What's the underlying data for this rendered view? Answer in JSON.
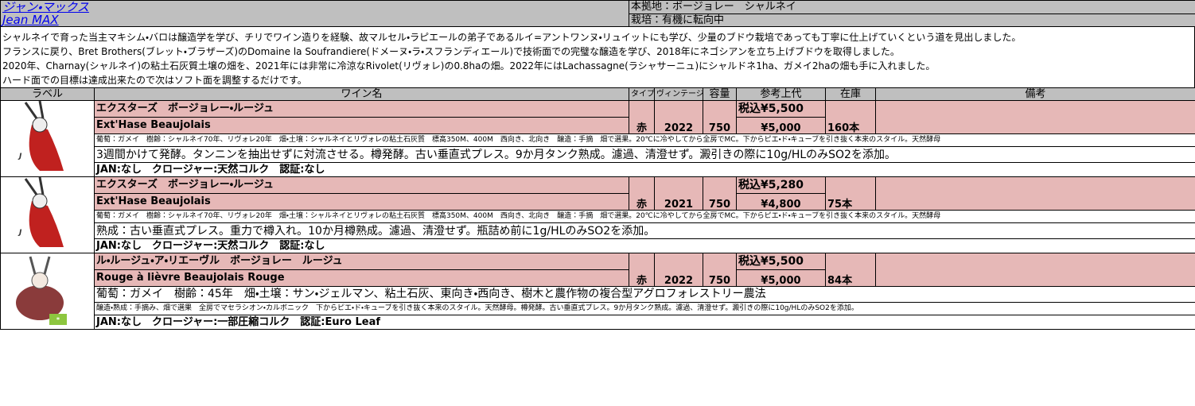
{
  "header": {
    "name_ja": "ジャン・マックス",
    "name_en": "Jean MAX",
    "base": "本拠地：ボージョレー　シャルネイ",
    "cultivation": "栽培：有機に転向中"
  },
  "description": [
    "シャルネイで育った当主マキシム・バロは醸造学を学び、チリでワイン造りを経験、故マルセル・ラピエールの弟子であるルイ=アントワンヌ・リュイットにも学び、少量のブドウ栽培であっても丁寧に仕上げていくという道を見出しました。",
    "フランスに戻り、Bret Brothers(ブレット・ブラザーズ)のDomaine la Soufrandiere(ドメーヌ・ラ・スフランディエール)で技術面での完璧な醸造を学び、2018年にネゴシアンを立ち上げブドウを取得しました。",
    "2020年、Charnay(シャルネイ)の粘土石灰質土壌の畑を、2021年には非常に冷涼なRivolet(リヴォレ)の0.8haの畑。2022年にはLachassagne(ラシャサーニュ)にシャルドネ1ha、ガメイ2haの畑も手に入れました。",
    "ハード面での目標は達成出来たので次はソフト面を調整するだけです。"
  ],
  "table": {
    "columns": [
      "ラベル",
      "ワイン名",
      "タイプ",
      "ヴィンテージ",
      "容量",
      "参考上代",
      "在庫",
      "備考"
    ],
    "rows": [
      {
        "name_ja": "エクスターズ　ボージョレー・ルージュ",
        "name_en": "Ext'Hase Beaujolais",
        "type": "赤",
        "vintage": 2022,
        "volume": 750,
        "price_incl": "税込¥5,500",
        "price": "¥5,000",
        "stock": "160本",
        "details": [
          "葡萄：ガメイ　樹齢：シャルネイ70年、リヴォレ20年　畑・土壌：シャルネイとリヴォレの粘土石灰質　標高350M、400M　西向き、北向き　醸造：手摘　畑で選果。20℃に冷やしてから全房でMC。下からピエ・ド・キューブを引き抜く本来のスタイル。天然酵母",
          "3週間かけて発酵。タンニンを抽出せずに対流させる。樽発酵。古い垂直式プレス。9か月タンク熟成。濾過、清澄せず。澱引きの際に10g/HLのみSO2を添加。"
        ],
        "jan": "JAN:なし　クロージャー:天然コルク　認証:なし"
      },
      {
        "name_ja": "エクスターズ　ボージョレー・ルージュ",
        "name_en": "Ext'Hase Beaujolais",
        "type": "赤",
        "vintage": 2021,
        "volume": 750,
        "price_incl": "税込¥5,280",
        "price": "¥4,800",
        "stock": "75本",
        "details": [
          "葡萄：ガメイ　樹齢：シャルネイ70年、リヴォレ20年　畑・土壌：シャルネイとリヴォレの粘土石灰質　標高350M、400M　西向き、北向き　醸造：手摘　畑で選果。20℃に冷やしてから全房でMC。下からピエ・ド・キューブを引き抜く本来のスタイル。天然酵母",
          "熟成：古い垂直式プレス。重力で樽入れ。10か月樽熟成。濾過、清澄せず。瓶詰め前に1g/HLのみSO2を添加。"
        ],
        "jan": "JAN:なし　クロージャー:天然コルク　認証:なし"
      },
      {
        "name_ja": "ル・ルージュ・ア・リエーヴル　ボージョレー　ルージュ",
        "name_en": "Rouge à lièvre Beaujolais Rouge",
        "type": "赤",
        "vintage": 2022,
        "volume": 750,
        "price_incl": "税込¥5,500",
        "price": "¥5,000",
        "stock": "84本",
        "details": [
          "葡萄：ガメイ　樹齢：45年　畑・土壌：サン・ジェルマン、粘土石灰、東向き・西向き、樹木と農作物の複合型アグロフォレストリー農法",
          "醸造・熟成：手摘み、畑で選果　全房でマセラシオン・カルボニック　下からピエ・ド・キューブを引き抜く本来のスタイル。天然酵母。樽発酵。古い垂直式プレス。9か月タンク熟成。濾過、清澄せず。澱引きの際に10g/HLのみSO2を添加。"
        ],
        "jan": "JAN:なし　クロージャー:一部圧縮コルク　認証:Euro Leaf"
      }
    ]
  }
}
